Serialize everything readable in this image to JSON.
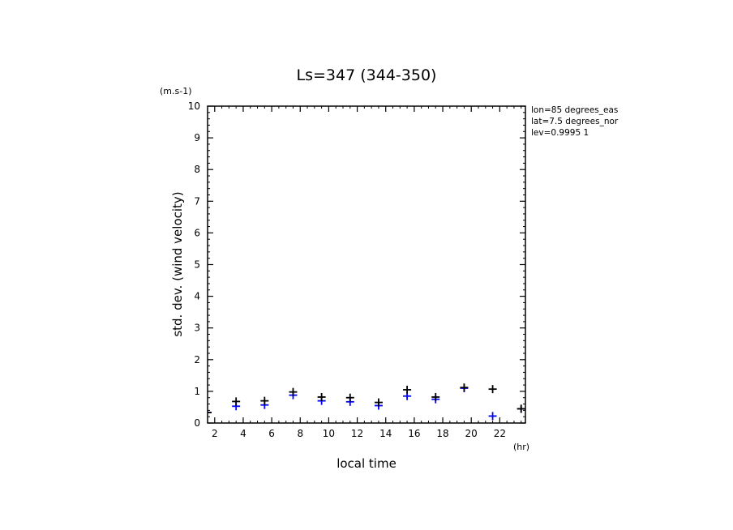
{
  "chart_data": {
    "type": "scatter",
    "title": "Ls=347 (344-350)",
    "xlabel": "local time",
    "ylabel": "std. dev. (wind velocity)",
    "x_unit": "(hr)",
    "y_unit": "(m.s-1)",
    "xlim": [
      1.5,
      23.8
    ],
    "ylim": [
      0,
      10
    ],
    "x_ticks": [
      2,
      4,
      6,
      8,
      10,
      12,
      14,
      16,
      18,
      20,
      22
    ],
    "y_ticks": [
      0,
      1,
      2,
      3,
      4,
      5,
      6,
      7,
      8,
      9,
      10
    ],
    "grid": false,
    "info_lines": [
      "lon=85 degrees_eas",
      "lat=7.5 degrees_nor",
      "lev=0.9995 1"
    ],
    "series": [
      {
        "color": "#000000",
        "marker": "plus",
        "x": [
          1.5,
          3.5,
          5.5,
          7.5,
          9.5,
          11.5,
          13.5,
          15.5,
          17.5,
          19.5,
          21.5,
          23.5
        ],
        "y": [
          0.33,
          0.68,
          0.7,
          0.98,
          0.82,
          0.8,
          0.65,
          1.05,
          0.82,
          1.12,
          1.07,
          0.45
        ]
      },
      {
        "color": "#0000ff",
        "marker": "plus",
        "x": [
          1.5,
          3.5,
          5.5,
          7.5,
          9.5,
          11.5,
          13.5,
          15.5,
          17.5,
          19.5,
          21.5,
          23.5
        ],
        "y": [
          0.33,
          0.53,
          0.57,
          0.88,
          0.7,
          0.67,
          0.55,
          0.85,
          0.75,
          1.1,
          0.22,
          0.45
        ]
      }
    ]
  }
}
